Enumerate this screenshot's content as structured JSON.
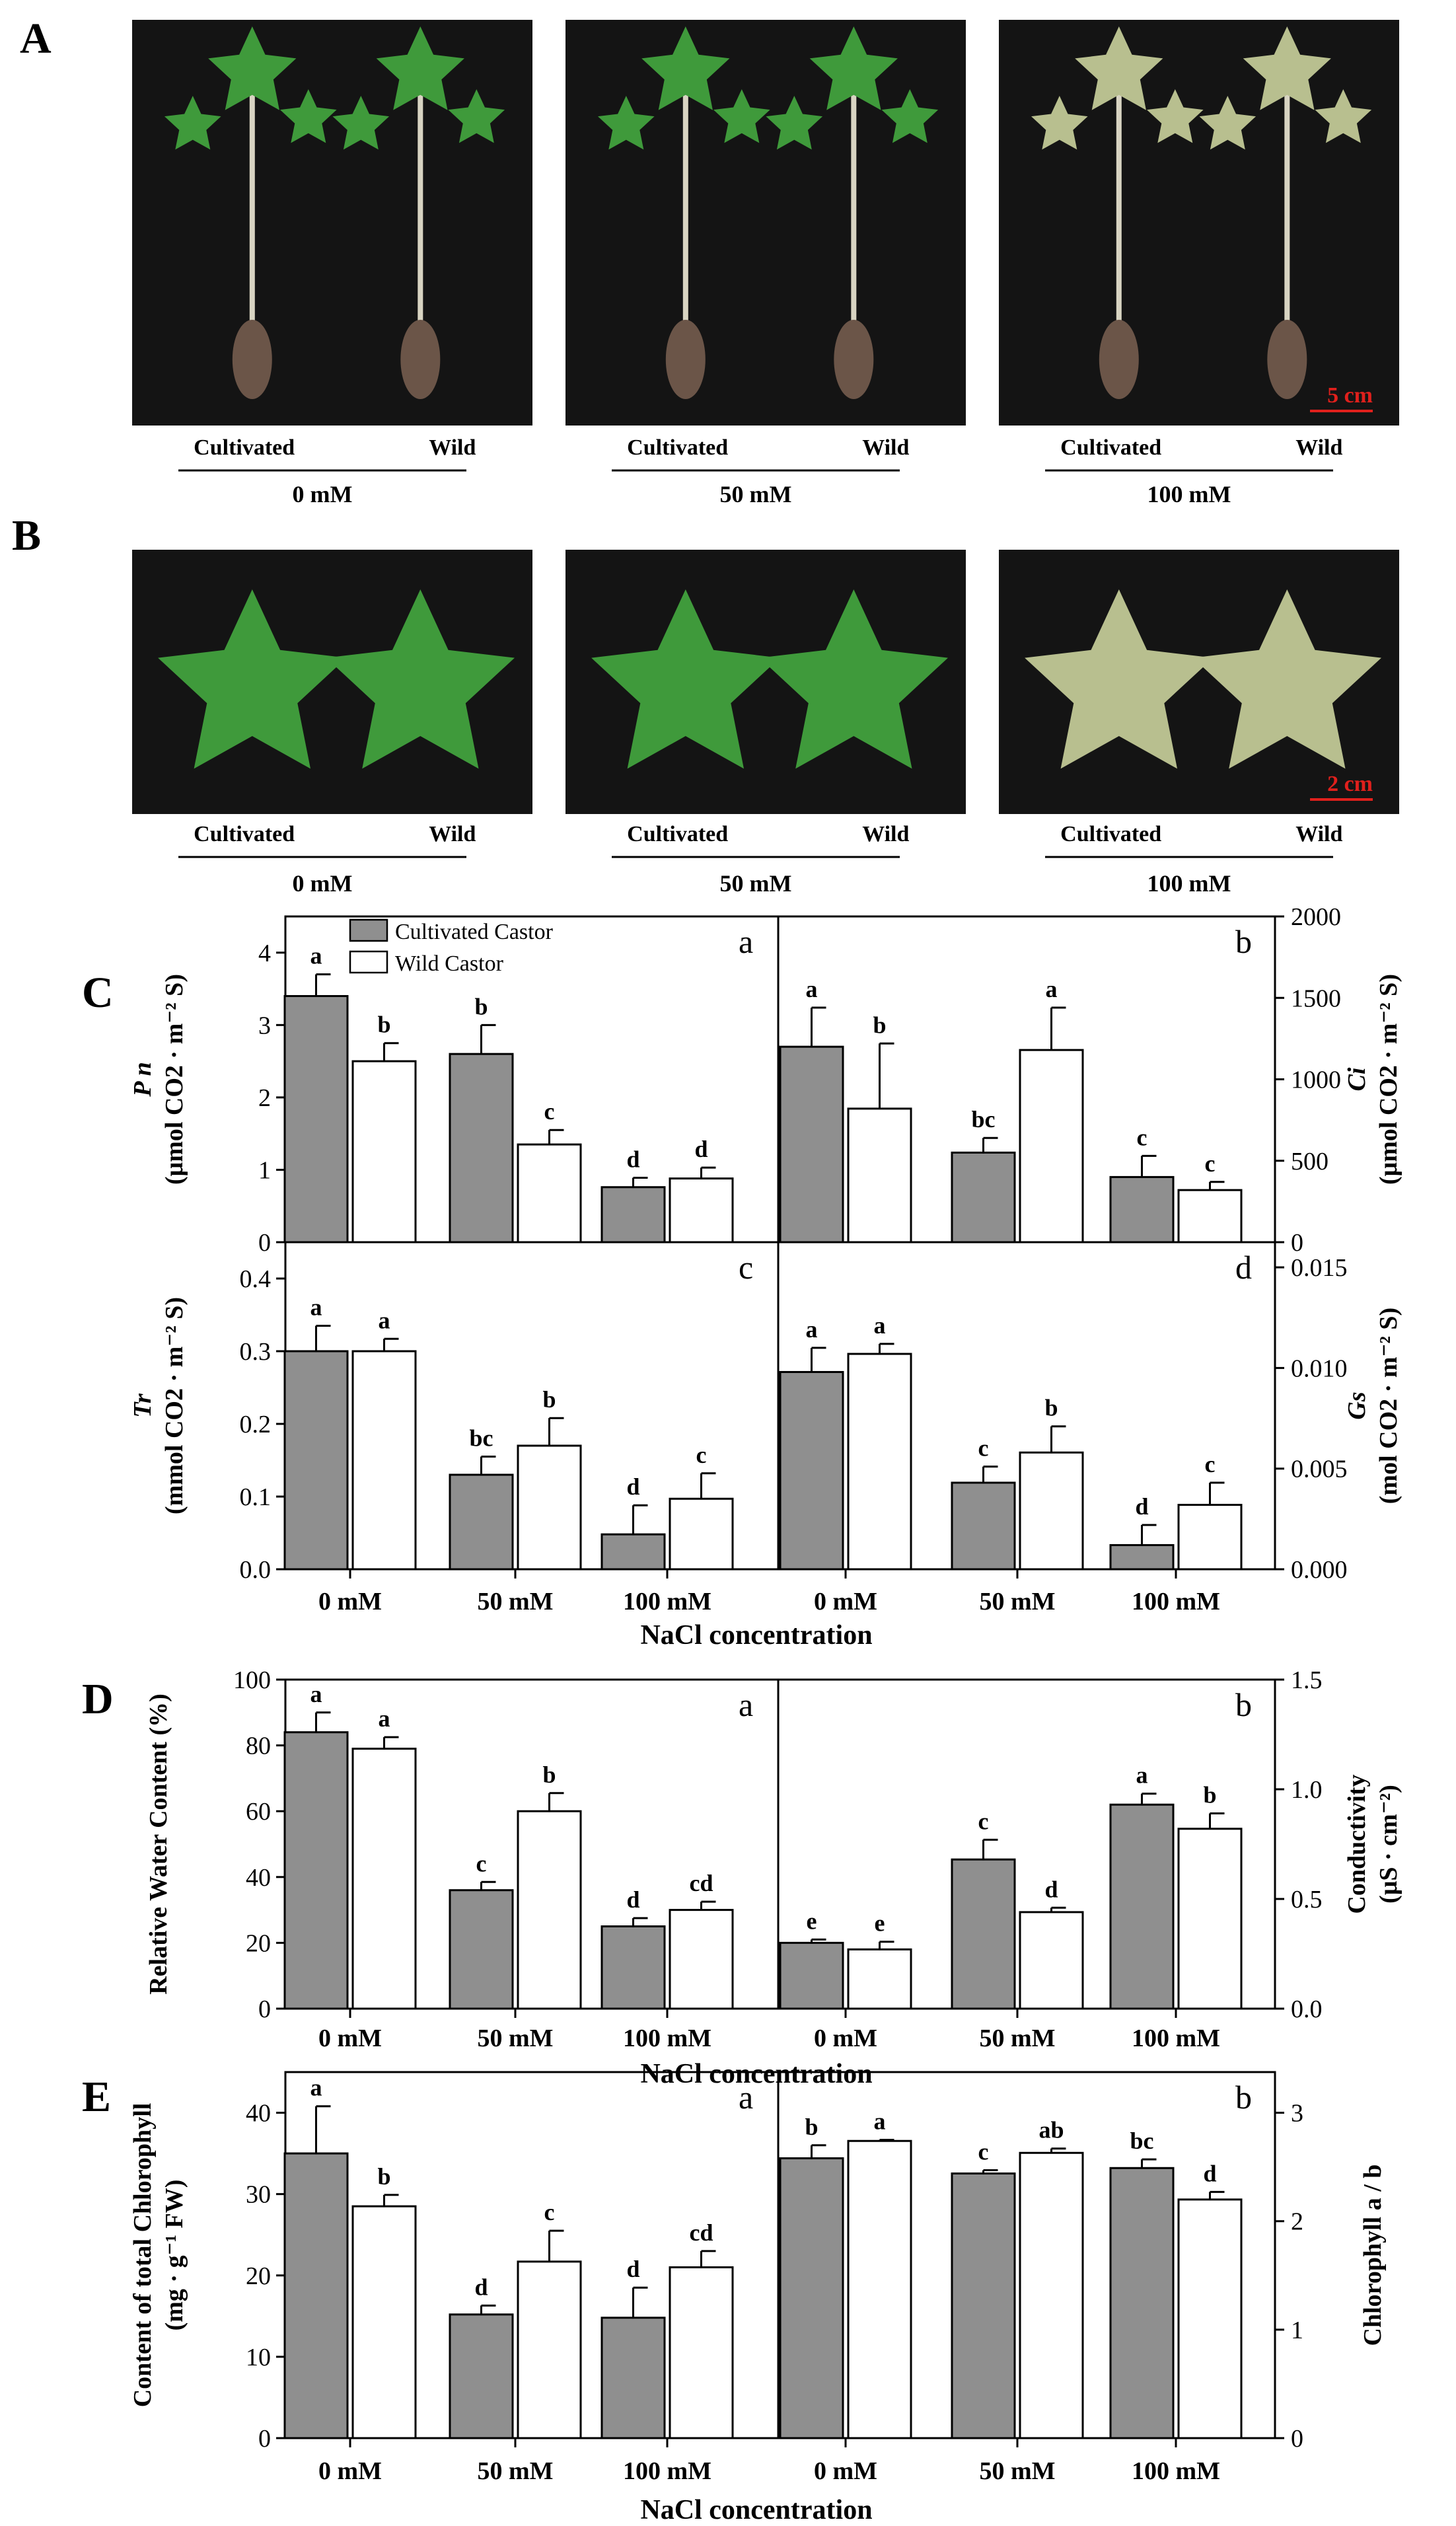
{
  "panels": {
    "A": "A",
    "B": "B",
    "C": "C",
    "D": "D",
    "E": "E"
  },
  "photos": {
    "labels": {
      "cultivated": "Cultivated",
      "wild": "Wild"
    },
    "concentrations": [
      "0 mM",
      "50 mM",
      "100 mM"
    ],
    "scale_A": "5 cm",
    "scale_B": "2 cm",
    "colors": {
      "background": "#141414",
      "leaf": "#3f9a3b",
      "stressed_leaf": "#b8bf8f",
      "stem": "#d8d4c2",
      "scale": "#e0201c"
    }
  },
  "legend": {
    "cultivated": "Cultivated Castor",
    "wild": "Wild Castor"
  },
  "colors": {
    "cultivated": "#8f8f8f",
    "wild": "#ffffff",
    "stroke": "#000000"
  },
  "x_title": "NaCl concentration",
  "chart_data": [
    {
      "id": "C-a",
      "type": "bar",
      "corner": "a",
      "ylabel": [
        "P n",
        "(μmol CO2 · m⁻² S)"
      ],
      "categories": [
        "0 mM",
        "50 mM",
        "100 mM"
      ],
      "ylim": [
        0,
        4.5
      ],
      "yticks": [
        0,
        1,
        2,
        3,
        4
      ],
      "ytick_labels": [
        "0",
        "1",
        "2",
        "3",
        "4"
      ],
      "series": [
        {
          "name": "Cultivated Castor",
          "values": [
            3.4,
            2.6,
            0.76
          ],
          "errors": [
            0.3,
            0.4,
            0.13
          ],
          "letters": [
            "a",
            "b",
            "d"
          ]
        },
        {
          "name": "Wild Castor",
          "values": [
            2.5,
            1.35,
            0.88
          ],
          "errors": [
            0.25,
            0.2,
            0.15
          ],
          "letters": [
            "b",
            "c",
            "d"
          ]
        }
      ]
    },
    {
      "id": "C-b",
      "type": "bar",
      "corner": "b",
      "ylabel": [
        "Ci",
        "(μmol CO2 · m⁻² S)"
      ],
      "categories": [
        "0 mM",
        "50 mM",
        "100 mM"
      ],
      "ylim": [
        0,
        2000
      ],
      "yticks": [
        0,
        500,
        1000,
        1500,
        2000
      ],
      "ytick_labels": [
        "0",
        "500",
        "1000",
        "1500",
        "2000"
      ],
      "series": [
        {
          "name": "Cultivated Castor",
          "values": [
            1200,
            550,
            400
          ],
          "errors": [
            240,
            90,
            130
          ],
          "letters": [
            "a",
            "bc",
            "c"
          ]
        },
        {
          "name": "Wild Castor",
          "values": [
            820,
            1180,
            320
          ],
          "errors": [
            400,
            260,
            50
          ],
          "letters": [
            "b",
            "a",
            "c"
          ]
        }
      ]
    },
    {
      "id": "C-c",
      "type": "bar",
      "corner": "c",
      "ylabel": [
        "Tr",
        "(mmol CO2 · m⁻² S)"
      ],
      "categories": [
        "0 mM",
        "50 mM",
        "100 mM"
      ],
      "ylim": [
        0,
        0.45
      ],
      "yticks": [
        0,
        0.1,
        0.2,
        0.3,
        0.4
      ],
      "ytick_labels": [
        "0.0",
        "0.1",
        "0.2",
        "0.3",
        "0.4"
      ],
      "series": [
        {
          "name": "Cultivated Castor",
          "values": [
            0.3,
            0.13,
            0.048
          ],
          "errors": [
            0.035,
            0.025,
            0.04
          ],
          "letters": [
            "a",
            "bc",
            "d"
          ]
        },
        {
          "name": "Wild Castor",
          "values": [
            0.3,
            0.17,
            0.097
          ],
          "errors": [
            0.017,
            0.038,
            0.035
          ],
          "letters": [
            "a",
            "b",
            "c"
          ]
        }
      ]
    },
    {
      "id": "C-d",
      "type": "bar",
      "corner": "d",
      "ylabel": [
        "Gs",
        "(mol CO2 · m⁻² S)"
      ],
      "categories": [
        "0 mM",
        "50 mM",
        "100 mM"
      ],
      "ylim": [
        0,
        0.01625
      ],
      "yticks": [
        0,
        0.005,
        0.01,
        0.015
      ],
      "ytick_labels": [
        "0.000",
        "0.005",
        "0.010",
        "0.015"
      ],
      "series": [
        {
          "name": "Cultivated Castor",
          "values": [
            0.0098,
            0.0043,
            0.0012
          ],
          "errors": [
            0.0012,
            0.0008,
            0.001
          ],
          "letters": [
            "a",
            "c",
            "d"
          ]
        },
        {
          "name": "Wild Castor",
          "values": [
            0.0107,
            0.0058,
            0.0032
          ],
          "errors": [
            0.0005,
            0.0013,
            0.0011
          ],
          "letters": [
            "a",
            "b",
            "c"
          ]
        }
      ]
    },
    {
      "id": "D-a",
      "type": "bar",
      "corner": "a",
      "ylabel": [
        "Relative Water Content (%)"
      ],
      "categories": [
        "0 mM",
        "50 mM",
        "100 mM"
      ],
      "ylim": [
        0,
        100
      ],
      "yticks": [
        0,
        20,
        40,
        60,
        80,
        100
      ],
      "ytick_labels": [
        "0",
        "20",
        "40",
        "60",
        "80",
        "100"
      ],
      "series": [
        {
          "name": "Cultivated Castor",
          "values": [
            84,
            36,
            25
          ],
          "errors": [
            6,
            2.5,
            2.5
          ],
          "letters": [
            "a",
            "c",
            "d"
          ]
        },
        {
          "name": "Wild Castor",
          "values": [
            79,
            60,
            30
          ],
          "errors": [
            3.5,
            5.5,
            2.5
          ],
          "letters": [
            "a",
            "b",
            "cd"
          ]
        }
      ]
    },
    {
      "id": "D-b",
      "type": "bar",
      "corner": "b",
      "ylabel": [
        "Conductivity",
        "(μS · cm⁻²)"
      ],
      "categories": [
        "0 mM",
        "50 mM",
        "100 mM"
      ],
      "ylim": [
        0,
        1.5
      ],
      "yticks": [
        0,
        0.5,
        1.0,
        1.5
      ],
      "ytick_labels": [
        "0.0",
        "0.5",
        "1.0",
        "1.5"
      ],
      "series": [
        {
          "name": "Cultivated Castor",
          "values": [
            0.3,
            0.68,
            0.93
          ],
          "errors": [
            0.015,
            0.09,
            0.05
          ],
          "letters": [
            "e",
            "c",
            "a"
          ]
        },
        {
          "name": "Wild Castor",
          "values": [
            0.27,
            0.44,
            0.82
          ],
          "errors": [
            0.035,
            0.02,
            0.07
          ],
          "letters": [
            "e",
            "d",
            "b"
          ]
        }
      ]
    },
    {
      "id": "E-a",
      "type": "bar",
      "corner": "a",
      "ylabel": [
        "Content of total Chlorophyll",
        "(mg · g⁻¹ FW)"
      ],
      "categories": [
        "0 mM",
        "50 mM",
        "100 mM"
      ],
      "ylim": [
        0,
        45
      ],
      "yticks": [
        0,
        10,
        20,
        30,
        40
      ],
      "ytick_labels": [
        "0",
        "10",
        "20",
        "30",
        "40"
      ],
      "series": [
        {
          "name": "Cultivated Castor",
          "values": [
            35,
            15.2,
            14.8
          ],
          "errors": [
            5.8,
            1.1,
            3.7
          ],
          "letters": [
            "a",
            "d",
            "d"
          ]
        },
        {
          "name": "Wild Castor",
          "values": [
            28.5,
            21.7,
            21
          ],
          "errors": [
            1.4,
            3.8,
            2
          ],
          "letters": [
            "b",
            "c",
            "cd"
          ]
        }
      ]
    },
    {
      "id": "E-b",
      "type": "bar",
      "corner": "b",
      "ylabel": [
        "Chlorophyll a / b"
      ],
      "categories": [
        "0 mM",
        "50 mM",
        "100 mM"
      ],
      "ylim": [
        0,
        3.375
      ],
      "yticks": [
        0,
        1,
        2,
        3
      ],
      "ytick_labels": [
        "0",
        "1",
        "2",
        "3"
      ],
      "series": [
        {
          "name": "Cultivated Castor",
          "values": [
            2.58,
            2.44,
            2.49
          ],
          "errors": [
            0.12,
            0.03,
            0.08
          ],
          "letters": [
            "b",
            "c",
            "bc"
          ]
        },
        {
          "name": "Wild Castor",
          "values": [
            2.74,
            2.63,
            2.2
          ],
          "errors": [
            0.01,
            0.04,
            0.07
          ],
          "letters": [
            "a",
            "ab",
            "d"
          ]
        }
      ]
    }
  ]
}
